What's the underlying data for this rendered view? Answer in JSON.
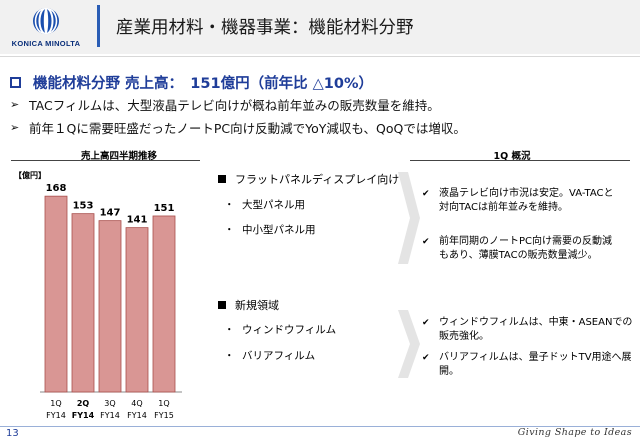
{
  "header": {
    "logo_text": "KONICA MINOLTA",
    "title": "産業用材料・機器事業：機能材料分野"
  },
  "headline": {
    "text": "機能材料分野 売上高：　151億円（前年比 △10%）"
  },
  "bullets": [
    "TACフィルムは、大型液晶テレビ向けが概ね前年並みの販売数量を維持。",
    "前年１Qに需要旺盛だったノートPC向け反動減でYoY減収も、QoQでは増収。"
  ],
  "chart_data": {
    "type": "bar",
    "title": "売上高四半期推移",
    "unit_label": "【億円】",
    "categories": [
      {
        "q": "1Q",
        "fy": "FY14"
      },
      {
        "q": "2Q",
        "fy": "FY14"
      },
      {
        "q": "3Q",
        "fy": "FY14"
      },
      {
        "q": "4Q",
        "fy": "FY14"
      },
      {
        "q": "1Q",
        "fy": "FY15"
      }
    ],
    "values": [
      168,
      153,
      147,
      141,
      151
    ],
    "ylim": [
      0,
      175
    ],
    "grid": false,
    "bar_color": "#d99694",
    "bar_stroke": "#a94f4c",
    "highlight_index": 1
  },
  "segments": {
    "flat_panel": {
      "heading": "フラットパネルディスプレイ向け",
      "items": [
        "大型パネル用",
        "中小型パネル用"
      ],
      "dot": "・"
    },
    "new_fields": {
      "heading": "新規領域",
      "items": [
        "ウィンドウフィルム",
        "バリアフィルム"
      ],
      "dot": "・"
    }
  },
  "summary": {
    "title": "1Q 概況",
    "group1": [
      [
        "液晶テレビ向け市況は安定。VA-TACと",
        "対向TACは前年並みを維持。"
      ],
      [
        "前年同期のノートPC向け需要の反動減",
        "もあり、薄膜TACの販売数量減少。"
      ]
    ],
    "group2": [
      [
        "ウィンドウフィルムは、中東・ASEANでの",
        "販売強化。"
      ],
      [
        "バリアフィルムは、量子ドットTV用途へ展",
        "開。"
      ]
    ]
  },
  "footer": {
    "page_number": "13",
    "tagline": "Giving Shape to Ideas"
  },
  "colors": {
    "accent": "#1f3d99",
    "header_bar": "#2a5db5",
    "header_bg": "#f1f1f1"
  }
}
